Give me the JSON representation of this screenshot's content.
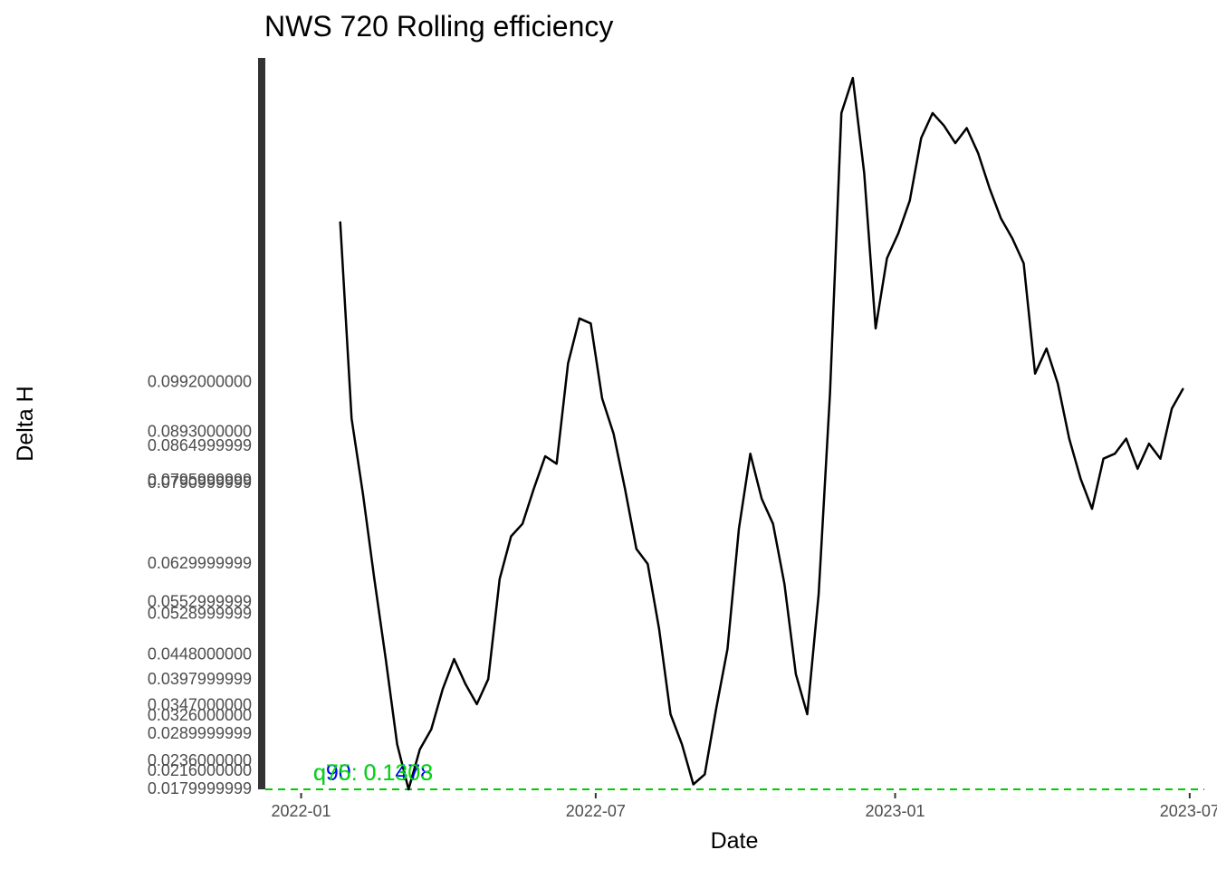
{
  "chart_data": {
    "type": "line",
    "title": "NWS 720 Rolling efficiency",
    "xlabel": "Date",
    "ylabel": "Delta H",
    "x_ticks": [
      "2022-01",
      "2022-07",
      "2023-01",
      "2023-07"
    ],
    "y_tick_labels": [
      "0.0992000000",
      "0.0893000000",
      "0.0864999999",
      "0.0795999999",
      "0.0790999999",
      "0.0629999999",
      "0.0552999999",
      "0.0528999999",
      "0.0448000000",
      "0.0397999999",
      "0.0347000000",
      "0.0326000000",
      "0.0289999999",
      "0.0236000000",
      "0.0216000000",
      "0.0179999999"
    ],
    "ylim": [
      0.0178,
      0.1638
    ],
    "reference_line": {
      "y": 0.0178,
      "style": "dashed",
      "color": "#00cc00"
    },
    "quantile_labels": [
      "q90: 0.1478",
      "q75: 0.1303"
    ],
    "quantile_colors": [
      "#0000ff",
      "#00dd00"
    ],
    "grid": false,
    "series": [
      {
        "color": "#000000",
        "x": [
          "2022-01-25",
          "2022-02-01",
          "2022-02-08",
          "2022-02-15",
          "2022-02-22",
          "2022-03-01",
          "2022-03-08",
          "2022-03-15",
          "2022-03-22",
          "2022-03-29",
          "2022-04-05",
          "2022-04-12",
          "2022-04-19",
          "2022-04-26",
          "2022-05-03",
          "2022-05-10",
          "2022-05-17",
          "2022-05-24",
          "2022-05-31",
          "2022-06-07",
          "2022-06-14",
          "2022-06-21",
          "2022-06-28",
          "2022-07-05",
          "2022-07-12",
          "2022-07-19",
          "2022-07-26",
          "2022-08-02",
          "2022-08-09",
          "2022-08-16",
          "2022-08-23",
          "2022-08-30",
          "2022-09-06",
          "2022-09-13",
          "2022-09-20",
          "2022-09-27",
          "2022-10-04",
          "2022-10-11",
          "2022-10-18",
          "2022-10-25",
          "2022-11-01",
          "2022-11-08",
          "2022-11-15",
          "2022-11-22",
          "2022-11-29",
          "2022-12-06",
          "2022-12-13",
          "2022-12-20",
          "2022-12-27",
          "2023-01-03",
          "2023-01-10",
          "2023-01-17",
          "2023-01-24",
          "2023-01-31",
          "2023-02-07",
          "2023-02-14",
          "2023-02-21",
          "2023-02-28",
          "2023-03-07",
          "2023-03-14",
          "2023-03-21",
          "2023-03-28",
          "2023-04-04",
          "2023-04-11",
          "2023-04-18",
          "2023-04-25",
          "2023-05-02",
          "2023-05-09",
          "2023-05-16",
          "2023-05-23",
          "2023-05-30",
          "2023-06-06",
          "2023-06-13",
          "2023-06-20",
          "2023-06-27"
        ],
        "y": [
          0.1311,
          0.0918,
          0.0768,
          0.0598,
          0.0438,
          0.0268,
          0.0178,
          0.0258,
          0.0298,
          0.0378,
          0.0438,
          0.0388,
          0.0348,
          0.0398,
          0.0598,
          0.0683,
          0.0708,
          0.0778,
          0.0843,
          0.0828,
          0.1028,
          0.1118,
          0.1108,
          0.0958,
          0.0888,
          0.0778,
          0.0658,
          0.0628,
          0.0498,
          0.0328,
          0.0268,
          0.0188,
          0.0208,
          0.0338,
          0.0458,
          0.0698,
          0.0848,
          0.0758,
          0.0708,
          0.0588,
          0.0408,
          0.0328,
          0.0568,
          0.0968,
          0.1528,
          0.1598,
          0.1408,
          0.1098,
          0.1238,
          0.1288,
          0.1353,
          0.1478,
          0.1528,
          0.1503,
          0.1468,
          0.1498,
          0.1448,
          0.1378,
          0.1318,
          0.1278,
          0.1228,
          0.1008,
          0.1058,
          0.0988,
          0.0878,
          0.0798,
          0.0738,
          0.0838,
          0.0848,
          0.0878,
          0.0818,
          0.0868,
          0.0838,
          0.0938,
          0.0978
        ]
      }
    ]
  }
}
